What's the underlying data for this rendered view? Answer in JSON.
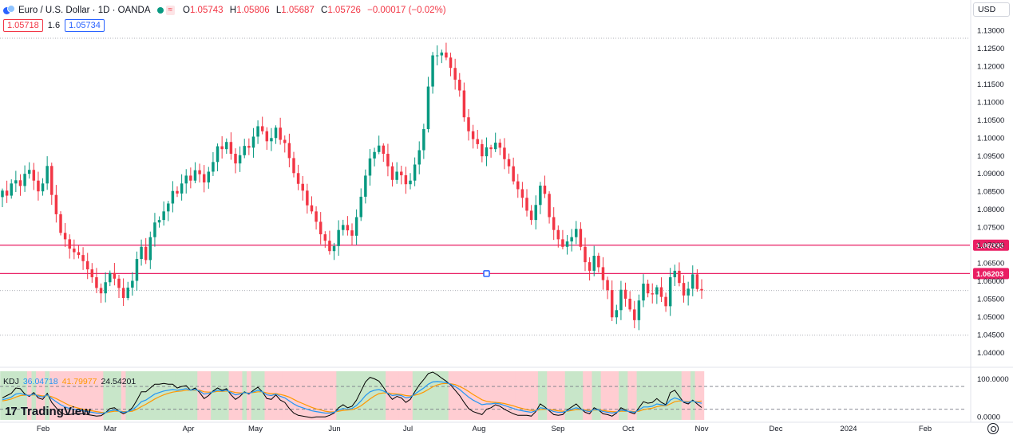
{
  "header": {
    "symbol": "Euro / U.S. Dollar · 1D · OANDA",
    "badge": "≈",
    "open_label": "O",
    "open": "1.05743",
    "high_label": "H",
    "high": "1.05806",
    "low_label": "L",
    "low": "1.05687",
    "close_label": "C",
    "close": "1.05726",
    "change": "−0.00017 (−0.02%)"
  },
  "quote": {
    "sell": "1.05718",
    "spread": "1.6",
    "buy": "1.05734"
  },
  "currency": "USD",
  "brand": {
    "name": "TradingView"
  },
  "kdj": {
    "label": "KDJ",
    "k": "36.04718",
    "d": "41.79977",
    "j": "24.54201"
  },
  "colors": {
    "up": "#089981",
    "down": "#f23645",
    "line": "#e91e63",
    "k_line": "#2196f3",
    "d_line": "#ff9800",
    "j_line": "#000000",
    "bg_up": "#c8e6c9",
    "bg_down": "#ffcdd2"
  },
  "chart_data": {
    "type": "candlestick",
    "y_ticks": [
      "1.13000",
      "1.12500",
      "1.12000",
      "1.11500",
      "1.11000",
      "1.10500",
      "1.10000",
      "1.09500",
      "1.09000",
      "1.08500",
      "1.08000",
      "1.07500",
      "1.07000",
      "1.06500",
      "1.06000",
      "1.05500",
      "1.05000",
      "1.04500",
      "1.04000"
    ],
    "ylim": [
      1.0365,
      1.1318
    ],
    "price_lines": [
      {
        "label": "1.06995",
        "value": 1.06995
      },
      {
        "label": "1.06203",
        "value": 1.06203
      }
    ],
    "x_labels": [
      "Feb",
      "Mar",
      "Apr",
      "May",
      "Jun",
      "Jul",
      "Aug",
      "Sep",
      "Oct",
      "Nov",
      "Dec",
      "2024",
      "Feb"
    ],
    "kdj_ticks": [
      "100.0000",
      "0.0000"
    ],
    "kdj_ylim": [
      -10,
      120
    ],
    "closes": [
      1.0852,
      1.0838,
      1.0872,
      1.0881,
      1.0865,
      1.0899,
      1.091,
      1.088,
      1.085,
      1.0872,
      1.0921,
      1.084,
      1.0786,
      1.0734,
      1.0716,
      1.069,
      1.068,
      1.0672,
      1.0655,
      1.0632,
      1.061,
      1.058,
      1.0565,
      1.0596,
      1.0622,
      1.0606,
      1.058,
      1.0552,
      1.0581,
      1.06,
      1.0661,
      1.0695,
      1.0658,
      1.0722,
      1.0763,
      1.077,
      1.0794,
      1.0816,
      1.0851,
      1.0844,
      1.0872,
      1.0894,
      1.088,
      1.0909,
      1.0898,
      1.0875,
      1.0905,
      1.0932,
      1.0976,
      1.0968,
      1.0988,
      1.0955,
      1.0928,
      1.0951,
      1.0977,
      1.0972,
      1.1003,
      1.1032,
      1.1018,
      1.099,
      1.0999,
      1.1028,
      1.0994,
      1.0985,
      1.0943,
      1.0901,
      1.0871,
      1.0852,
      1.0811,
      1.0794,
      1.0765,
      1.073,
      1.0712,
      1.0683,
      1.0697,
      1.0742,
      1.0756,
      1.0741,
      1.0726,
      1.0778,
      1.0835,
      1.0894,
      1.0942,
      1.096,
      1.0978,
      1.0955,
      1.092,
      1.0882,
      1.0905,
      1.0895,
      1.087,
      1.088,
      1.0925,
      1.0965,
      1.1024,
      1.1143,
      1.123,
      1.123,
      1.1238,
      1.1224,
      1.1195,
      1.1162,
      1.1132,
      1.1057,
      1.1018,
      1.0996,
      1.0982,
      1.0948,
      1.0973,
      1.0968,
      1.0986,
      1.0972,
      1.094,
      1.092,
      1.0878,
      1.0856,
      1.0832,
      1.0796,
      1.077,
      1.0812,
      1.0866,
      1.0843,
      1.0778,
      1.0742,
      1.0716,
      1.0695,
      1.071,
      1.0722,
      1.0745,
      1.0695,
      1.0652,
      1.0628,
      1.067,
      1.0638,
      1.0602,
      1.0574,
      1.0498,
      1.0518,
      1.0575,
      1.055,
      1.052,
      1.049,
      1.0545,
      1.0592,
      1.0565,
      1.0562,
      1.0582,
      1.0555,
      1.0529,
      1.061,
      1.0628,
      1.0594,
      1.0559,
      1.0578,
      1.0618,
      1.0577,
      1.0573
    ],
    "kdj_k": [
      45,
      48,
      52,
      60,
      62,
      58,
      56,
      60,
      55,
      52,
      58,
      48,
      40,
      32,
      26,
      22,
      20,
      18,
      16,
      14,
      12,
      10,
      9,
      11,
      16,
      18,
      15,
      12,
      14,
      18,
      28,
      40,
      44,
      52,
      60,
      64,
      68,
      70,
      72,
      70,
      72,
      74,
      70,
      72,
      68,
      60,
      62,
      66,
      70,
      68,
      70,
      64,
      58,
      60,
      64,
      62,
      66,
      70,
      66,
      58,
      56,
      60,
      54,
      50,
      42,
      34,
      28,
      24,
      20,
      16,
      14,
      12,
      10,
      10,
      12,
      18,
      22,
      20,
      22,
      30,
      42,
      56,
      66,
      70,
      72,
      68,
      62,
      56,
      58,
      56,
      50,
      52,
      60,
      68,
      76,
      86,
      92,
      93,
      92,
      90,
      86,
      80,
      72,
      62,
      52,
      44,
      38,
      32,
      34,
      34,
      36,
      34,
      30,
      26,
      22,
      18,
      16,
      14,
      12,
      16,
      24,
      22,
      18,
      14,
      12,
      12,
      16,
      20,
      24,
      20,
      16,
      14,
      20,
      18,
      14,
      12,
      10,
      12,
      18,
      16,
      14,
      12,
      18,
      26,
      26,
      28,
      34,
      32,
      30,
      44,
      50,
      46,
      40,
      38,
      42,
      38,
      36
    ],
    "kdj_d": [
      42,
      44,
      47,
      52,
      56,
      57,
      57,
      58,
      57,
      55,
      56,
      53,
      48,
      42,
      36,
      30,
      26,
      23,
      20,
      18,
      16,
      14,
      12,
      11,
      13,
      15,
      15,
      14,
      14,
      15,
      20,
      27,
      33,
      40,
      47,
      53,
      58,
      62,
      65,
      67,
      68,
      70,
      70,
      70,
      70,
      66,
      65,
      65,
      67,
      67,
      68,
      67,
      64,
      63,
      63,
      63,
      64,
      66,
      66,
      63,
      61,
      61,
      59,
      56,
      52,
      46,
      40,
      35,
      30,
      25,
      21,
      18,
      15,
      13,
      13,
      15,
      17,
      18,
      19,
      23,
      29,
      38,
      47,
      55,
      61,
      63,
      63,
      61,
      60,
      59,
      56,
      55,
      57,
      60,
      65,
      72,
      79,
      84,
      87,
      88,
      87,
      85,
      80,
      74,
      67,
      59,
      52,
      45,
      41,
      39,
      38,
      37,
      35,
      32,
      29,
      25,
      22,
      19,
      17,
      17,
      19,
      20,
      19,
      18,
      16,
      15,
      15,
      17,
      19,
      19,
      18,
      17,
      18,
      18,
      17,
      15,
      14,
      13,
      15,
      15,
      15,
      14,
      15,
      19,
      21,
      23,
      27,
      29,
      29,
      34,
      40,
      42,
      41,
      40,
      41,
      40,
      41.8
    ],
    "kdj_j": [
      50,
      56,
      62,
      76,
      74,
      60,
      54,
      64,
      50,
      46,
      62,
      38,
      24,
      12,
      6,
      6,
      8,
      8,
      8,
      6,
      4,
      2,
      3,
      11,
      22,
      24,
      15,
      8,
      14,
      24,
      44,
      66,
      66,
      76,
      86,
      86,
      88,
      86,
      86,
      76,
      80,
      82,
      70,
      76,
      64,
      48,
      56,
      68,
      76,
      70,
      74,
      58,
      46,
      54,
      66,
      60,
      70,
      78,
      66,
      48,
      46,
      58,
      44,
      38,
      22,
      10,
      4,
      2,
      0,
      -2,
      0,
      0,
      0,
      4,
      10,
      24,
      32,
      24,
      28,
      44,
      68,
      92,
      104,
      100,
      94,
      78,
      60,
      46,
      54,
      50,
      38,
      46,
      66,
      84,
      98,
      114,
      118,
      111,
      102,
      94,
      84,
      70,
      56,
      38,
      22,
      14,
      10,
      6,
      20,
      24,
      32,
      28,
      20,
      14,
      8,
      4,
      4,
      4,
      2,
      14,
      34,
      26,
      16,
      6,
      4,
      6,
      18,
      26,
      34,
      22,
      12,
      8,
      24,
      18,
      8,
      6,
      2,
      10,
      24,
      18,
      12,
      8,
      24,
      40,
      36,
      38,
      48,
      38,
      32,
      64,
      70,
      54,
      38,
      34,
      44,
      34,
      24.5
    ]
  }
}
